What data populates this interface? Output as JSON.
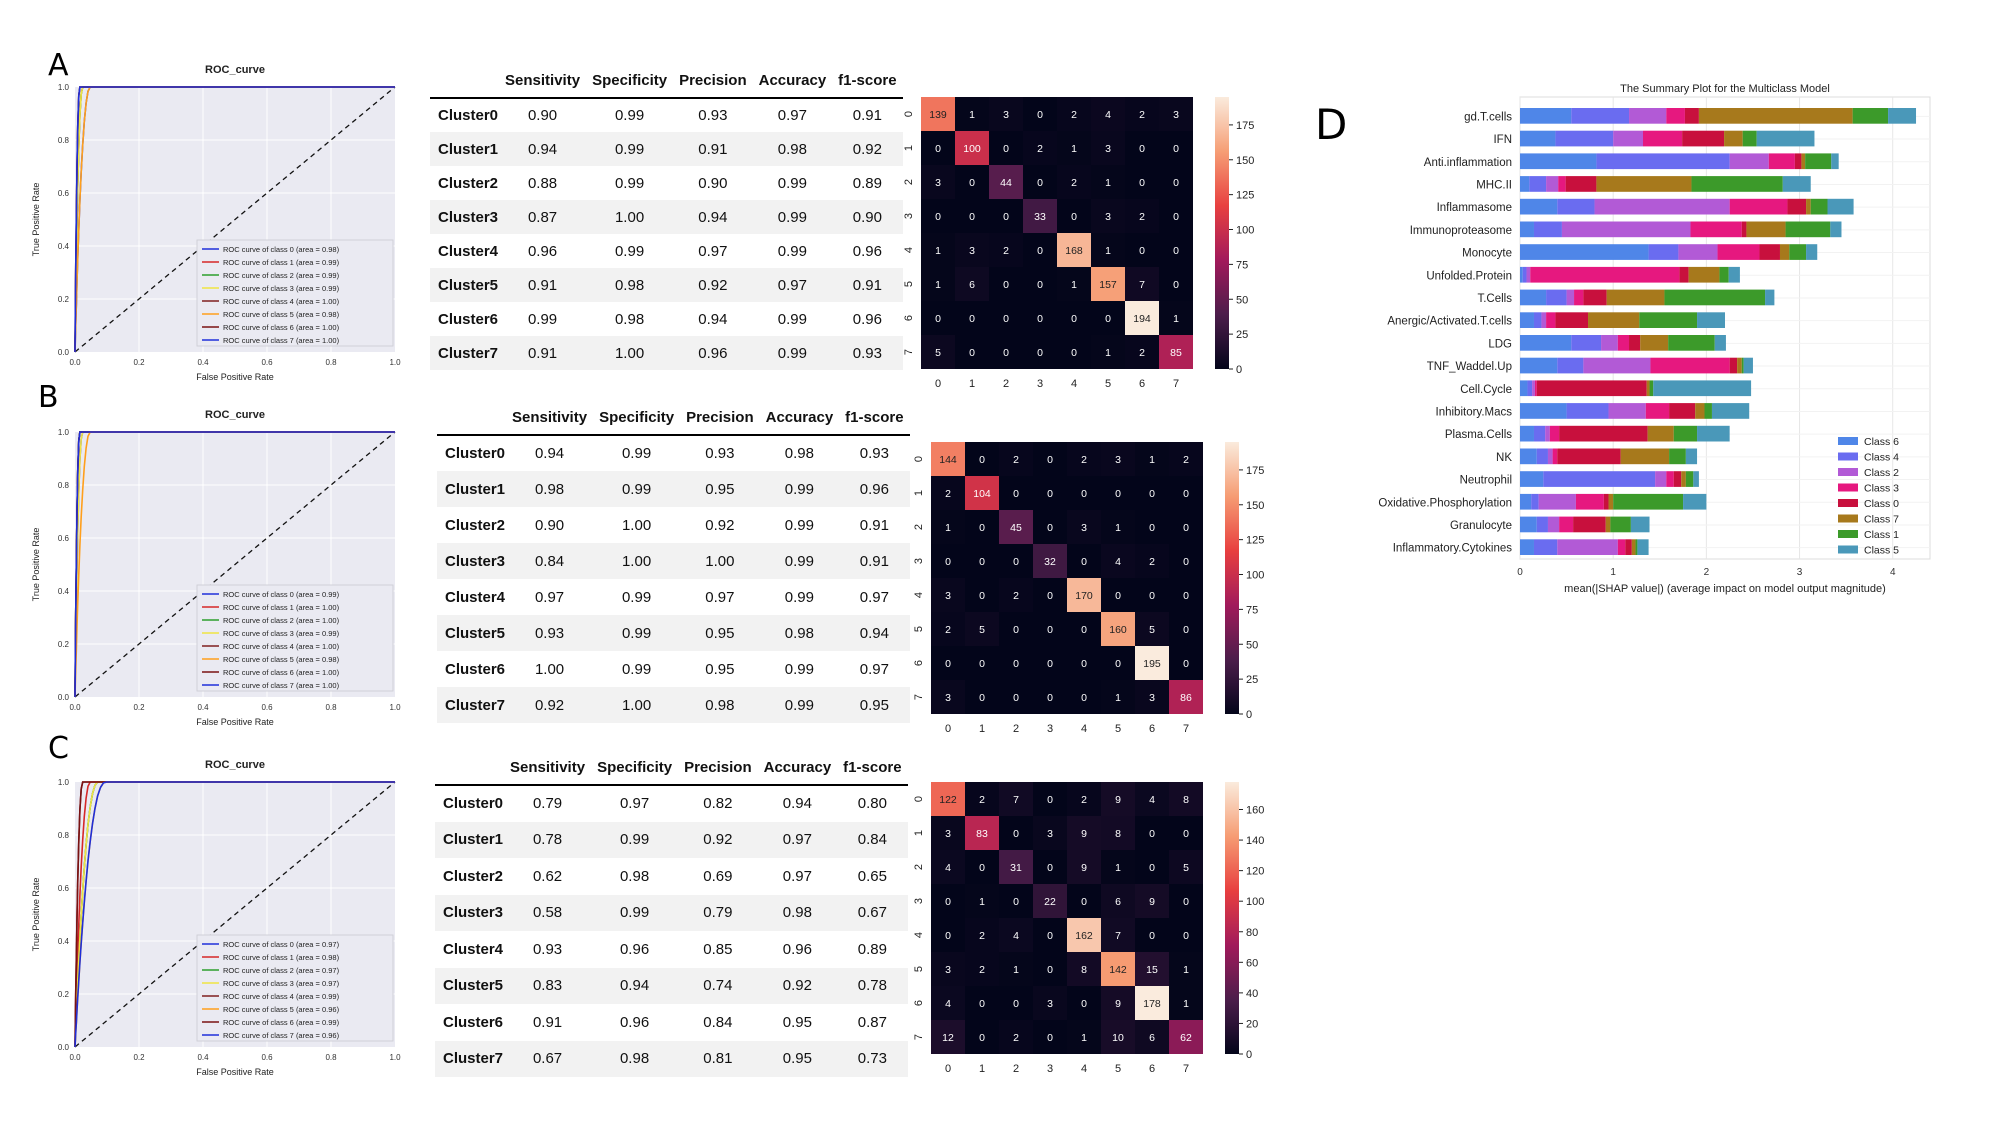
{
  "panel_labels": [
    "A",
    "B",
    "C",
    "D"
  ],
  "roc_common": {
    "title": "ROC_curve",
    "xlabel": "False Positive Rate",
    "ylabel": "True Positive Rate",
    "ticks": [
      "0.0",
      "0.2",
      "0.4",
      "0.6",
      "0.8",
      "1.0"
    ],
    "class_colors": [
      "#1f2fd9",
      "#d62728",
      "#2ca02c",
      "#f0e442",
      "#7f1f1f",
      "#ff9f1c",
      "#7a1212",
      "#1f2fd9"
    ]
  },
  "metric_headers": [
    "Sensitivity",
    "Specificity",
    "Precision",
    "Accuracy",
    "f1-score"
  ],
  "cm_color_stops": [
    "#03051a",
    "#4c1d4b",
    "#a11a5b",
    "#e83f3f",
    "#f69c73",
    "#faebdd"
  ],
  "cm_tick_labels": [
    "0",
    "1",
    "2",
    "3",
    "4",
    "5",
    "6",
    "7"
  ],
  "chart_data": [
    {
      "type": "line",
      "panel": "A",
      "title": "ROC_curve",
      "xlabel": "False Positive Rate",
      "ylabel": "True Positive Rate",
      "xlim": [
        0,
        1
      ],
      "ylim": [
        0,
        1
      ],
      "legend": [
        "ROC curve of class 0 (area = 0.98)",
        "ROC curve of class 1 (area = 0.99)",
        "ROC curve of class 2 (area = 0.99)",
        "ROC curve of class 3 (area = 0.99)",
        "ROC curve of class 4 (area = 1.00)",
        "ROC curve of class 5 (area = 0.98)",
        "ROC curve of class 6 (area = 1.00)",
        "ROC curve of class 7 (area = 1.00)"
      ],
      "auc": [
        0.98,
        0.99,
        0.99,
        0.99,
        1.0,
        0.98,
        1.0,
        1.0
      ],
      "legend_position": "lower-right"
    },
    {
      "type": "table",
      "panel": "A",
      "columns": [
        "Sensitivity",
        "Specificity",
        "Precision",
        "Accuracy",
        "f1-score"
      ],
      "rows": [
        {
          "name": "Cluster0",
          "values": [
            "0.90",
            "0.99",
            "0.93",
            "0.97",
            "0.91"
          ]
        },
        {
          "name": "Cluster1",
          "values": [
            "0.94",
            "0.99",
            "0.91",
            "0.98",
            "0.92"
          ]
        },
        {
          "name": "Cluster2",
          "values": [
            "0.88",
            "0.99",
            "0.90",
            "0.99",
            "0.89"
          ]
        },
        {
          "name": "Cluster3",
          "values": [
            "0.87",
            "1.00",
            "0.94",
            "0.99",
            "0.90"
          ]
        },
        {
          "name": "Cluster4",
          "values": [
            "0.96",
            "0.99",
            "0.97",
            "0.99",
            "0.96"
          ]
        },
        {
          "name": "Cluster5",
          "values": [
            "0.91",
            "0.98",
            "0.92",
            "0.97",
            "0.91"
          ]
        },
        {
          "name": "Cluster6",
          "values": [
            "0.99",
            "0.98",
            "0.94",
            "0.99",
            "0.96"
          ]
        },
        {
          "name": "Cluster7",
          "values": [
            "0.91",
            "1.00",
            "0.96",
            "0.99",
            "0.93"
          ]
        }
      ]
    },
    {
      "type": "heatmap",
      "panel": "A",
      "x": [
        "0",
        "1",
        "2",
        "3",
        "4",
        "5",
        "6",
        "7"
      ],
      "y": [
        "0",
        "1",
        "2",
        "3",
        "4",
        "5",
        "6",
        "7"
      ],
      "values": [
        [
          139,
          1,
          3,
          0,
          2,
          4,
          2,
          3
        ],
        [
          0,
          100,
          0,
          2,
          1,
          3,
          0,
          0
        ],
        [
          3,
          0,
          44,
          0,
          2,
          1,
          0,
          0
        ],
        [
          0,
          0,
          0,
          33,
          0,
          3,
          2,
          0
        ],
        [
          1,
          3,
          2,
          0,
          168,
          1,
          0,
          0
        ],
        [
          1,
          6,
          0,
          0,
          1,
          157,
          7,
          0
        ],
        [
          0,
          0,
          0,
          0,
          0,
          0,
          194,
          1
        ],
        [
          5,
          0,
          0,
          0,
          0,
          1,
          2,
          85
        ]
      ],
      "colorbar_max": 194,
      "colorbar_ticks": [
        "0",
        "25",
        "50",
        "75",
        "100",
        "125",
        "150",
        "175"
      ]
    },
    {
      "type": "line",
      "panel": "B",
      "title": "ROC_curve",
      "xlabel": "False Positive Rate",
      "ylabel": "True Positive Rate",
      "xlim": [
        0,
        1
      ],
      "ylim": [
        0,
        1
      ],
      "legend": [
        "ROC curve of class 0 (area = 0.99)",
        "ROC curve of class 1 (area = 1.00)",
        "ROC curve of class 2 (area = 1.00)",
        "ROC curve of class 3 (area = 0.99)",
        "ROC curve of class 4 (area = 1.00)",
        "ROC curve of class 5 (area = 0.98)",
        "ROC curve of class 6 (area = 1.00)",
        "ROC curve of class 7 (area = 1.00)"
      ],
      "auc": [
        0.99,
        1.0,
        1.0,
        0.99,
        1.0,
        0.98,
        1.0,
        1.0
      ],
      "legend_position": "lower-right"
    },
    {
      "type": "table",
      "panel": "B",
      "columns": [
        "Sensitivity",
        "Specificity",
        "Precision",
        "Accuracy",
        "f1-score"
      ],
      "rows": [
        {
          "name": "Cluster0",
          "values": [
            "0.94",
            "0.99",
            "0.93",
            "0.98",
            "0.93"
          ]
        },
        {
          "name": "Cluster1",
          "values": [
            "0.98",
            "0.99",
            "0.95",
            "0.99",
            "0.96"
          ]
        },
        {
          "name": "Cluster2",
          "values": [
            "0.90",
            "1.00",
            "0.92",
            "0.99",
            "0.91"
          ]
        },
        {
          "name": "Cluster3",
          "values": [
            "0.84",
            "1.00",
            "1.00",
            "0.99",
            "0.91"
          ]
        },
        {
          "name": "Cluster4",
          "values": [
            "0.97",
            "0.99",
            "0.97",
            "0.99",
            "0.97"
          ]
        },
        {
          "name": "Cluster5",
          "values": [
            "0.93",
            "0.99",
            "0.95",
            "0.98",
            "0.94"
          ]
        },
        {
          "name": "Cluster6",
          "values": [
            "1.00",
            "0.99",
            "0.95",
            "0.99",
            "0.97"
          ]
        },
        {
          "name": "Cluster7",
          "values": [
            "0.92",
            "1.00",
            "0.98",
            "0.99",
            "0.95"
          ]
        }
      ]
    },
    {
      "type": "heatmap",
      "panel": "B",
      "x": [
        "0",
        "1",
        "2",
        "3",
        "4",
        "5",
        "6",
        "7"
      ],
      "y": [
        "0",
        "1",
        "2",
        "3",
        "4",
        "5",
        "6",
        "7"
      ],
      "values": [
        [
          144,
          0,
          2,
          0,
          2,
          3,
          1,
          2
        ],
        [
          2,
          104,
          0,
          0,
          0,
          0,
          0,
          0
        ],
        [
          1,
          0,
          45,
          0,
          3,
          1,
          0,
          0
        ],
        [
          0,
          0,
          0,
          32,
          0,
          4,
          2,
          0
        ],
        [
          3,
          0,
          2,
          0,
          170,
          0,
          0,
          0
        ],
        [
          2,
          5,
          0,
          0,
          0,
          160,
          5,
          0
        ],
        [
          0,
          0,
          0,
          0,
          0,
          0,
          195,
          0
        ],
        [
          3,
          0,
          0,
          0,
          0,
          1,
          3,
          86
        ]
      ],
      "colorbar_max": 195,
      "colorbar_ticks": [
        "0",
        "25",
        "50",
        "75",
        "100",
        "125",
        "150",
        "175"
      ]
    },
    {
      "type": "line",
      "panel": "C",
      "title": "ROC_curve",
      "xlabel": "False Positive Rate",
      "ylabel": "True Positive Rate",
      "xlim": [
        0,
        1
      ],
      "ylim": [
        0,
        1
      ],
      "legend": [
        "ROC curve of class 0 (area = 0.97)",
        "ROC curve of class 1 (area = 0.98)",
        "ROC curve of class 2 (area = 0.97)",
        "ROC curve of class 3 (area = 0.97)",
        "ROC curve of class 4 (area = 0.99)",
        "ROC curve of class 5 (area = 0.96)",
        "ROC curve of class 6 (area = 0.99)",
        "ROC curve of class 7 (area = 0.96)"
      ],
      "auc": [
        0.97,
        0.98,
        0.97,
        0.97,
        0.99,
        0.96,
        0.99,
        0.96
      ],
      "legend_position": "lower-right"
    },
    {
      "type": "table",
      "panel": "C",
      "columns": [
        "Sensitivity",
        "Specificity",
        "Precision",
        "Accuracy",
        "f1-score"
      ],
      "rows": [
        {
          "name": "Cluster0",
          "values": [
            "0.79",
            "0.97",
            "0.82",
            "0.94",
            "0.80"
          ]
        },
        {
          "name": "Cluster1",
          "values": [
            "0.78",
            "0.99",
            "0.92",
            "0.97",
            "0.84"
          ]
        },
        {
          "name": "Cluster2",
          "values": [
            "0.62",
            "0.98",
            "0.69",
            "0.97",
            "0.65"
          ]
        },
        {
          "name": "Cluster3",
          "values": [
            "0.58",
            "0.99",
            "0.79",
            "0.98",
            "0.67"
          ]
        },
        {
          "name": "Cluster4",
          "values": [
            "0.93",
            "0.96",
            "0.85",
            "0.96",
            "0.89"
          ]
        },
        {
          "name": "Cluster5",
          "values": [
            "0.83",
            "0.94",
            "0.74",
            "0.92",
            "0.78"
          ]
        },
        {
          "name": "Cluster6",
          "values": [
            "0.91",
            "0.96",
            "0.84",
            "0.95",
            "0.87"
          ]
        },
        {
          "name": "Cluster7",
          "values": [
            "0.67",
            "0.98",
            "0.81",
            "0.95",
            "0.73"
          ]
        }
      ]
    },
    {
      "type": "heatmap",
      "panel": "C",
      "x": [
        "0",
        "1",
        "2",
        "3",
        "4",
        "5",
        "6",
        "7"
      ],
      "y": [
        "0",
        "1",
        "2",
        "3",
        "4",
        "5",
        "6",
        "7"
      ],
      "values": [
        [
          122,
          2,
          7,
          0,
          2,
          9,
          4,
          8
        ],
        [
          3,
          83,
          0,
          3,
          9,
          8,
          0,
          0
        ],
        [
          4,
          0,
          31,
          0,
          9,
          1,
          0,
          5
        ],
        [
          0,
          1,
          0,
          22,
          0,
          6,
          9,
          0
        ],
        [
          0,
          2,
          4,
          0,
          162,
          7,
          0,
          0
        ],
        [
          3,
          2,
          1,
          0,
          8,
          142,
          15,
          1
        ],
        [
          4,
          0,
          0,
          3,
          0,
          9,
          178,
          1
        ],
        [
          12,
          0,
          2,
          0,
          1,
          10,
          6,
          62
        ]
      ],
      "colorbar_max": 178,
      "colorbar_ticks": [
        "0",
        "20",
        "40",
        "60",
        "80",
        "100",
        "120",
        "140",
        "160"
      ]
    },
    {
      "type": "bar",
      "panel": "D",
      "title": "The Summary Plot for the Multiclass Model",
      "xlabel": "mean(|SHAP value|) (average impact on model output magnitude)",
      "orientation": "horizontal",
      "stacked": true,
      "xlim": [
        0,
        4.4
      ],
      "xticks": [
        "0",
        "1",
        "2",
        "3",
        "4"
      ],
      "legend_position": "lower-right",
      "categories": [
        "gd.T.cells",
        "IFN",
        "Anti.inflammation",
        "MHC.II",
        "Inflammasome",
        "Immunoproteasome",
        "Monocyte",
        "Unfolded.Protein",
        "T.Cells",
        "Anergic/Activated.T.cells",
        "LDG",
        "TNF_Waddel.Up",
        "Cell.Cycle",
        "Inhibitory.Macs",
        "Plasma.Cells",
        "NK",
        "Neutrophil",
        "Oxidative.Phosphorylation",
        "Granulocyte",
        "Inflammatory.Cytokines"
      ],
      "series": [
        {
          "name": "Class 6",
          "color": "#4f86e8",
          "values": [
            0.55,
            0.38,
            0.82,
            0.1,
            0.4,
            0.15,
            1.38,
            0.03,
            0.28,
            0.15,
            0.55,
            0.4,
            0.08,
            0.5,
            0.15,
            0.18,
            0.25,
            0.12,
            0.18,
            0.15
          ]
        },
        {
          "name": "Class 4",
          "color": "#6a6cf0",
          "values": [
            0.62,
            0.62,
            1.43,
            0.18,
            0.4,
            0.3,
            0.32,
            0.04,
            0.22,
            0.08,
            0.32,
            0.28,
            0.05,
            0.45,
            0.12,
            0.12,
            1.2,
            0.08,
            0.12,
            0.25
          ]
        },
        {
          "name": "Class 2",
          "color": "#b25ad6",
          "values": [
            0.4,
            0.32,
            0.42,
            0.13,
            1.45,
            1.38,
            0.42,
            0.04,
            0.08,
            0.05,
            0.18,
            0.72,
            0.03,
            0.4,
            0.05,
            0.05,
            0.12,
            0.4,
            0.12,
            0.65
          ]
        },
        {
          "name": "Class 3",
          "color": "#e6187f",
          "values": [
            0.2,
            0.42,
            0.28,
            0.08,
            0.62,
            0.55,
            0.45,
            1.6,
            0.1,
            0.1,
            0.12,
            0.85,
            0.02,
            0.25,
            0.1,
            0.05,
            0.08,
            0.3,
            0.15,
            0.08
          ]
        },
        {
          "name": "Class 0",
          "color": "#c8103d",
          "values": [
            0.15,
            0.45,
            0.07,
            0.33,
            0.2,
            0.05,
            0.22,
            0.1,
            0.25,
            0.35,
            0.12,
            0.08,
            1.18,
            0.28,
            0.95,
            0.68,
            0.08,
            0.05,
            0.35,
            0.07
          ]
        },
        {
          "name": "Class 7",
          "color": "#a7791c",
          "values": [
            1.65,
            0.2,
            0.04,
            1.02,
            0.05,
            0.42,
            0.1,
            0.33,
            0.62,
            0.55,
            0.3,
            0.05,
            0.03,
            0.1,
            0.28,
            0.52,
            0.05,
            0.05,
            0.05,
            0.04
          ]
        },
        {
          "name": "Class 1",
          "color": "#3c9a2a",
          "values": [
            0.38,
            0.15,
            0.28,
            0.98,
            0.18,
            0.48,
            0.18,
            0.1,
            1.08,
            0.62,
            0.5,
            0.02,
            0.04,
            0.08,
            0.25,
            0.18,
            0.08,
            0.75,
            0.22,
            0.02
          ]
        },
        {
          "name": "Class 5",
          "color": "#4a98b9",
          "values": [
            0.3,
            0.62,
            0.08,
            0.3,
            0.28,
            0.12,
            0.12,
            0.12,
            0.1,
            0.3,
            0.12,
            0.1,
            1.05,
            0.4,
            0.35,
            0.12,
            0.06,
            0.25,
            0.2,
            0.12
          ]
        }
      ],
      "legend_order": [
        "Class 6",
        "Class 4",
        "Class 2",
        "Class 3",
        "Class 0",
        "Class 7",
        "Class 1",
        "Class 5"
      ]
    }
  ]
}
